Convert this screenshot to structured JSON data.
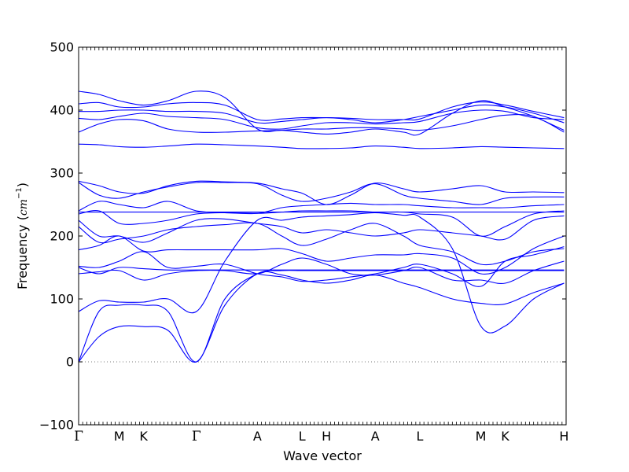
{
  "chart_data": {
    "type": "line",
    "title": "",
    "xlabel": "Wave vector",
    "ylabel_text": "Frequency (",
    "ylabel_unit_base": "cm",
    "ylabel_unit_exp": "−1",
    "ylabel_close": ")",
    "ylim": [
      -100,
      500
    ],
    "yticks": [
      -100,
      0,
      100,
      200,
      300,
      400,
      500
    ],
    "ytick_labels": [
      "−100",
      "0",
      "100",
      "200",
      "300",
      "400",
      "500"
    ],
    "xlim": [
      0,
      12
    ],
    "high_symmetry_points": [
      {
        "label": "Γ",
        "x": 0
      },
      {
        "label": "M",
        "x": 1.0
      },
      {
        "label": "K",
        "x": 1.6
      },
      {
        "label": "Γ",
        "x": 2.9
      },
      {
        "label": "A",
        "x": 4.4
      },
      {
        "label": "L",
        "x": 5.5
      },
      {
        "label": "H",
        "x": 6.1
      },
      {
        "label": "A",
        "x": 7.3
      },
      {
        "label": "L",
        "x": 8.4
      },
      {
        "label": "M",
        "x": 9.9
      },
      {
        "label": "K",
        "x": 10.5
      },
      {
        "label": "H",
        "x": 11.95
      }
    ],
    "zero_line": 0,
    "line_color": "#0000ff",
    "series": [
      {
        "x": [
          0,
          0.5,
          1.0,
          1.6,
          2.2,
          2.9,
          3.6,
          4.4,
          5.0,
          5.5,
          6.1,
          6.7,
          7.3,
          8.0,
          8.4,
          9.2,
          9.9,
          10.5,
          11.2,
          11.95
        ],
        "y": [
          0,
          40,
          56,
          56,
          50,
          0,
          90,
          140,
          138,
          130,
          125,
          130,
          138,
          125,
          118,
          100,
          93,
          92,
          110,
          125
        ]
      },
      {
        "x": [
          0,
          0.5,
          1.0,
          1.6,
          2.2,
          2.9,
          3.6,
          4.4,
          5.0,
          5.5,
          6.1,
          6.7,
          7.3,
          8.0,
          8.4,
          9.2,
          9.9,
          10.5,
          11.2,
          11.95
        ],
        "y": [
          0,
          80,
          90,
          90,
          80,
          0,
          100,
          140,
          145,
          145,
          145,
          145,
          145,
          145,
          145,
          145,
          145,
          145,
          145,
          145
        ]
      },
      {
        "x": [
          0,
          0.5,
          1.0,
          1.6,
          2.2,
          2.9,
          3.6,
          4.4,
          5.0,
          5.5,
          6.1,
          6.7,
          7.3,
          8.0,
          8.4,
          9.2,
          9.9,
          10.5,
          11.2,
          11.95
        ],
        "y": [
          80,
          97,
          95,
          95,
          100,
          80,
          160,
          225,
          225,
          230,
          232,
          234,
          237,
          233,
          230,
          180,
          57,
          57,
          100,
          125
        ]
      },
      {
        "x": [
          0,
          0.5,
          1.0,
          1.6,
          2.2,
          2.9,
          3.6,
          4.4,
          5.0,
          5.5,
          6.1,
          6.7,
          7.3,
          8.0,
          8.4,
          9.2,
          9.9,
          10.5,
          11.2,
          11.95
        ],
        "y": [
          140,
          143,
          145,
          130,
          140,
          145,
          145,
          140,
          155,
          165,
          155,
          140,
          138,
          145,
          150,
          130,
          130,
          125,
          145,
          160
        ]
      },
      {
        "x": [
          0,
          0.5,
          1.0,
          1.6,
          2.2,
          2.9,
          3.6,
          4.4,
          5.0,
          5.5,
          6.1,
          6.7,
          7.3,
          8.0,
          8.4,
          9.2,
          9.9,
          10.5,
          11.2,
          11.95
        ],
        "y": [
          150,
          140,
          150,
          148,
          146,
          146,
          146,
          146,
          146,
          146,
          146,
          146,
          146,
          146,
          146,
          146,
          146,
          146,
          146,
          146
        ]
      },
      {
        "x": [
          0,
          0.5,
          1.0,
          1.6,
          2.2,
          2.9,
          3.6,
          4.4,
          5.0,
          5.5,
          6.1,
          6.7,
          7.3,
          8.0,
          8.4,
          9.2,
          9.9,
          10.5,
          11.2,
          11.95
        ],
        "y": [
          152,
          150,
          160,
          175,
          150,
          152,
          155,
          140,
          135,
          128,
          130,
          135,
          140,
          150,
          155,
          140,
          120,
          160,
          170,
          183
        ]
      },
      {
        "x": [
          0,
          0.5,
          1.0,
          1.6,
          2.2,
          2.9,
          3.6,
          4.4,
          5.0,
          5.5,
          6.1,
          6.7,
          7.3,
          8.0,
          8.4,
          9.2,
          9.9,
          10.5,
          11.2,
          11.95
        ],
        "y": [
          178,
          185,
          200,
          176,
          178,
          178,
          178,
          178,
          180,
          172,
          160,
          165,
          170,
          170,
          172,
          165,
          140,
          150,
          180,
          200
        ]
      },
      {
        "x": [
          0,
          0.5,
          1.0,
          1.6,
          2.2,
          2.9,
          3.6,
          4.4,
          5.0,
          5.5,
          6.1,
          6.7,
          7.3,
          8.0,
          8.4,
          9.2,
          9.9,
          10.5,
          11.2,
          11.95
        ],
        "y": [
          215,
          190,
          195,
          200,
          210,
          215,
          218,
          220,
          200,
          185,
          195,
          210,
          220,
          200,
          185,
          175,
          155,
          160,
          175,
          180
        ]
      },
      {
        "x": [
          0,
          0.5,
          1.0,
          1.6,
          2.2,
          2.9,
          3.6,
          4.4,
          5.0,
          5.5,
          6.1,
          6.7,
          7.3,
          8.0,
          8.4,
          9.2,
          9.9,
          10.5,
          11.2,
          11.95
        ],
        "y": [
          225,
          200,
          200,
          190,
          205,
          225,
          227,
          220,
          215,
          205,
          210,
          205,
          200,
          205,
          210,
          205,
          200,
          195,
          225,
          232
        ]
      },
      {
        "x": [
          0,
          0.5,
          1.0,
          1.6,
          2.2,
          2.9,
          3.6,
          4.4,
          5.0,
          5.5,
          6.1,
          6.7,
          7.3,
          8.0,
          8.4,
          9.2,
          9.9,
          10.5,
          11.2,
          11.95
        ],
        "y": [
          235,
          240,
          220,
          220,
          225,
          235,
          237,
          236,
          238,
          240,
          240,
          240,
          238,
          238,
          235,
          230,
          200,
          215,
          235,
          240
        ]
      },
      {
        "x": [
          0,
          0.5,
          1.0,
          1.6,
          2.2,
          2.9,
          3.6,
          4.4,
          5.0,
          5.5,
          6.1,
          6.7,
          7.3,
          8.0,
          8.4,
          9.2,
          9.9,
          10.5,
          11.2,
          11.95
        ],
        "y": [
          238,
          238,
          238,
          238,
          238,
          238,
          238,
          238,
          238,
          238,
          238,
          238,
          238,
          238,
          238,
          238,
          238,
          238,
          238,
          238
        ]
      },
      {
        "x": [
          0,
          0.5,
          1.0,
          1.6,
          2.2,
          2.9,
          3.6,
          4.4,
          5.0,
          5.5,
          6.1,
          6.7,
          7.3,
          8.0,
          8.4,
          9.2,
          9.9,
          10.5,
          11.2,
          11.95
        ],
        "y": [
          240,
          255,
          250,
          245,
          255,
          240,
          237,
          236,
          245,
          248,
          250,
          252,
          250,
          250,
          248,
          245,
          245,
          245,
          248,
          250
        ]
      },
      {
        "x": [
          0,
          0.5,
          1.0,
          1.6,
          2.2,
          2.9,
          3.6,
          4.4,
          5.0,
          5.5,
          6.1,
          6.7,
          7.3,
          8.0,
          8.4,
          9.2,
          9.9,
          10.5,
          11.2,
          11.95
        ],
        "y": [
          285,
          265,
          260,
          270,
          278,
          285,
          285,
          283,
          265,
          255,
          260,
          270,
          283,
          265,
          260,
          255,
          250,
          260,
          262,
          262
        ]
      },
      {
        "x": [
          0,
          0.5,
          1.0,
          1.6,
          2.2,
          2.9,
          3.6,
          4.4,
          5.0,
          5.5,
          6.1,
          6.7,
          7.3,
          8.0,
          8.4,
          9.2,
          9.9,
          10.5,
          11.2,
          11.95
        ],
        "y": [
          287,
          280,
          270,
          268,
          280,
          287,
          286,
          284,
          275,
          268,
          250,
          265,
          284,
          275,
          270,
          275,
          280,
          270,
          270,
          269
        ]
      },
      {
        "x": [
          0,
          0.5,
          1.0,
          1.6,
          2.2,
          2.9,
          3.6,
          4.4,
          5.0,
          5.5,
          6.1,
          6.7,
          7.3,
          8.0,
          8.4,
          9.2,
          9.9,
          10.5,
          11.2,
          11.95
        ],
        "y": [
          346,
          345,
          342,
          341,
          343,
          346,
          345,
          343,
          341,
          339,
          339,
          340,
          343,
          341,
          339,
          340,
          342,
          341,
          340,
          339
        ]
      },
      {
        "x": [
          0,
          0.5,
          1.0,
          1.6,
          2.2,
          2.9,
          3.6,
          4.4,
          5.0,
          5.5,
          6.1,
          6.7,
          7.3,
          8.0,
          8.4,
          9.2,
          9.9,
          10.5,
          11.2,
          11.95
        ],
        "y": [
          365,
          378,
          385,
          383,
          370,
          365,
          365,
          367,
          368,
          370,
          370,
          372,
          372,
          370,
          368,
          375,
          385,
          392,
          390,
          365
        ]
      },
      {
        "x": [
          0,
          0.5,
          1.0,
          1.6,
          2.2,
          2.9,
          3.6,
          4.4,
          5.0,
          5.5,
          6.1,
          6.7,
          7.3,
          8.0,
          8.4,
          9.2,
          9.9,
          10.5,
          11.2,
          11.95
        ],
        "y": [
          387,
          385,
          390,
          395,
          390,
          388,
          385,
          372,
          370,
          375,
          380,
          380,
          378,
          380,
          382,
          395,
          400,
          398,
          388,
          385
        ]
      },
      {
        "x": [
          0,
          0.5,
          1.0,
          1.6,
          2.2,
          2.9,
          3.6,
          4.4,
          5.0,
          5.5,
          6.1,
          6.7,
          7.3,
          8.0,
          8.4,
          9.2,
          9.9,
          10.5,
          11.2,
          11.95
        ],
        "y": [
          398,
          398,
          400,
          400,
          398,
          398,
          395,
          380,
          382,
          385,
          388,
          385,
          380,
          385,
          390,
          400,
          408,
          405,
          395,
          380
        ]
      },
      {
        "x": [
          0,
          0.5,
          1.0,
          1.6,
          2.2,
          2.9,
          3.6,
          4.4,
          5.0,
          5.5,
          6.1,
          6.7,
          7.3,
          8.0,
          8.4,
          9.2,
          9.9,
          10.5,
          11.2,
          11.95
        ],
        "y": [
          410,
          412,
          405,
          405,
          410,
          412,
          408,
          385,
          386,
          388,
          388,
          387,
          385,
          385,
          386,
          405,
          413,
          408,
          398,
          388
        ]
      },
      {
        "x": [
          0,
          0.5,
          1.0,
          1.6,
          2.2,
          2.9,
          3.6,
          4.4,
          5.0,
          5.5,
          6.1,
          6.7,
          7.3,
          8.0,
          8.4,
          9.2,
          9.9,
          10.5,
          11.2,
          11.95
        ],
        "y": [
          430,
          425,
          415,
          408,
          415,
          430,
          420,
          370,
          368,
          365,
          362,
          365,
          370,
          365,
          362,
          395,
          415,
          405,
          390,
          368
        ]
      }
    ]
  }
}
